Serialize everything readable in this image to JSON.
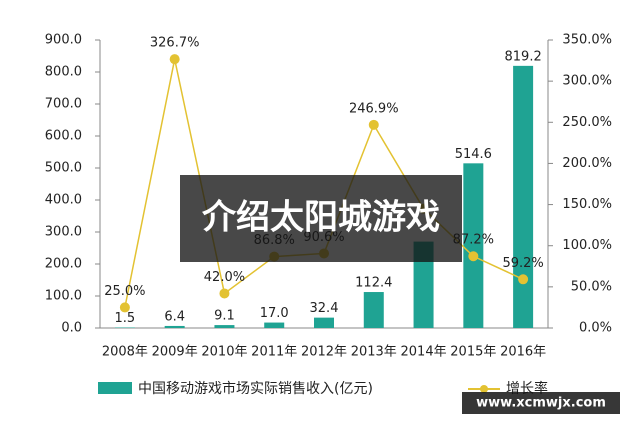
{
  "chart_data": {
    "type": "bar_line",
    "categories": [
      "2008年",
      "2009年",
      "2010年",
      "2011年",
      "2012年",
      "2013年",
      "2014年",
      "2015年",
      "2016年"
    ],
    "series": [
      {
        "name": "中国移动游戏市场实际销售收入(亿元)",
        "color": "#1fa393",
        "type": "bar",
        "values": [
          1.5,
          6.4,
          9.1,
          17.0,
          32.4,
          112.4,
          270,
          514.6,
          819.2
        ],
        "value_labels": [
          "1.5",
          "6.4",
          "9.1",
          "17.0",
          "32.4",
          "112.4",
          null,
          "514.6",
          "819.2"
        ]
      },
      {
        "name": "增长率",
        "color": "#e3c232",
        "type": "line",
        "axis": "y2",
        "values": [
          25.0,
          326.7,
          42.0,
          86.8,
          90.6,
          246.9,
          145,
          87.2,
          59.2
        ],
        "value_labels": [
          "25.0%",
          "326.7%",
          "42.0%",
          "86.8%",
          "90.6%",
          "246.9%",
          null,
          "87.2%",
          "59.2%"
        ]
      }
    ],
    "ylim": [
      0,
      900
    ],
    "yticks": [
      {
        "value": 0,
        "label": "0.0"
      },
      {
        "value": 100,
        "label": "100.0"
      },
      {
        "value": 200,
        "label": "200.0"
      },
      {
        "value": 300,
        "label": "300.0"
      },
      {
        "value": 400,
        "label": "400.0"
      },
      {
        "value": 500,
        "label": "500.0"
      },
      {
        "value": 600,
        "label": "600.0"
      },
      {
        "value": 700,
        "label": "700.0"
      },
      {
        "value": 800,
        "label": "800.0"
      },
      {
        "value": 900,
        "label": "900.0"
      }
    ],
    "y2lim": [
      0,
      350
    ],
    "y2ticks": [
      {
        "value": 0,
        "label": "0.0%"
      },
      {
        "value": 50,
        "label": "50.0%"
      },
      {
        "value": 100,
        "label": "100.0%"
      },
      {
        "value": 150,
        "label": "150.0%"
      },
      {
        "value": 200,
        "label": "200.0%"
      },
      {
        "value": 250,
        "label": "250.0%"
      },
      {
        "value": 300,
        "label": "300.0%"
      },
      {
        "value": 350,
        "label": "350.0%"
      }
    ]
  },
  "overlay": {
    "title": "介绍太阳城游戏"
  },
  "watermark": {
    "url": "www.xcmwjx.com"
  }
}
